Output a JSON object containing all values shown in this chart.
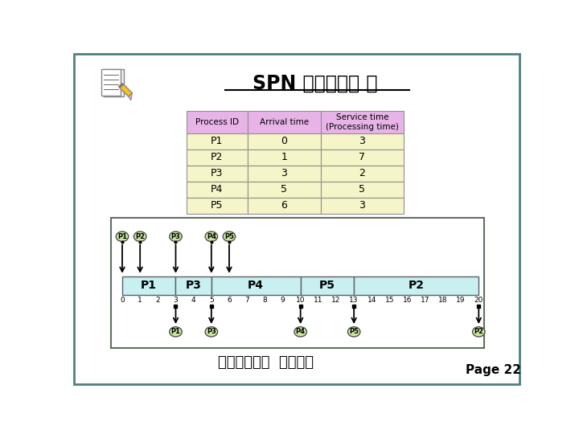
{
  "title": "SPN 스케줄링의 예",
  "table_header_color": "#e8b4e8",
  "table_data_color": "#f5f5c8",
  "table_service_color": "#f5f5c8",
  "processes": [
    "P1",
    "P2",
    "P3",
    "P4",
    "P5"
  ],
  "arrival_times": [
    0,
    1,
    3,
    5,
    6
  ],
  "service_times": [
    3,
    7,
    2,
    5,
    3
  ],
  "schedule": [
    {
      "label": "P1",
      "start": 0,
      "end": 3
    },
    {
      "label": "P3",
      "start": 3,
      "end": 5
    },
    {
      "label": "P4",
      "start": 5,
      "end": 10
    },
    {
      "label": "P5",
      "start": 10,
      "end": 13
    },
    {
      "label": "P2",
      "start": 13,
      "end": 20
    }
  ],
  "gantt_color": "#c8f0f0",
  "gantt_border": "#606060",
  "timeline_max": 20,
  "arrival_arrows": [
    {
      "label": "P1",
      "time": 0
    },
    {
      "label": "P2",
      "time": 1
    },
    {
      "label": "P3",
      "time": 3
    },
    {
      "label": "P4",
      "time": 5
    },
    {
      "label": "P5",
      "time": 6
    }
  ],
  "finish_arrows": [
    {
      "label": "P1",
      "time": 3
    },
    {
      "label": "P3",
      "time": 5
    },
    {
      "label": "P4",
      "time": 10
    },
    {
      "label": "P5",
      "time": 13
    },
    {
      "label": "P2",
      "time": 20
    }
  ],
  "bubble_color": "#c8e8a0",
  "bubble_border": "#505050",
  "footer_text": "컴퓨터공학과  운영체제",
  "page_text": "Page 22",
  "outer_border_color": "#607060",
  "slide_border_color": "#508080"
}
